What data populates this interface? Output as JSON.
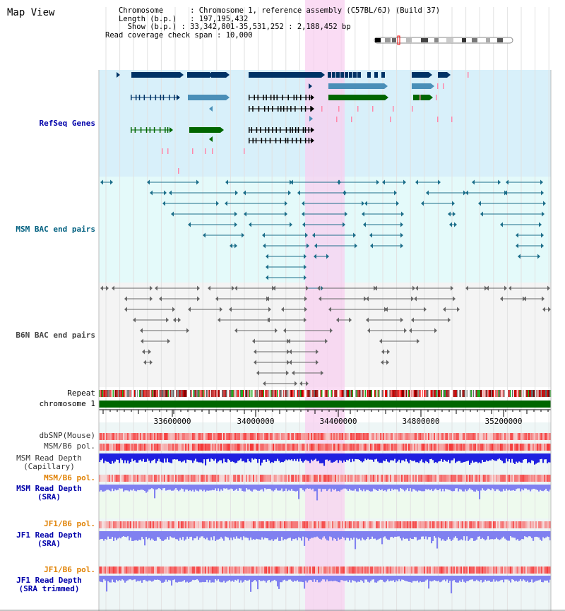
{
  "header": {
    "title": "Map View"
  },
  "info": {
    "chromosome_key": "Chromosome",
    "chromosome_val": "Chromosome 1, reference assembly (C57BL/6J) (Build 37)",
    "length_key": "Length (b.p.)",
    "length_val": "197,195,432",
    "show_key": "Show (b.p.)",
    "show_val": "33,342,801-35,531,252 : 2,188,452 bp",
    "span_key": "Read coverage check span",
    "span_val": "10,000"
  },
  "tracks": {
    "refseq": "RefSeq Genes",
    "msm_bac": "MSM BAC end pairs",
    "b6n_bac": "B6N BAC end pairs",
    "repeat": "Repeat",
    "chromosome": "chromosome 1",
    "dbsnp": "dbSNP(Mouse)",
    "msm_b6_pol": "MSM/B6 pol.",
    "msm_depth_cap_1": "MSM Read Depth",
    "msm_depth_cap_2": "(Capillary)",
    "msm_b6_pol_2": "MSM/B6 pol.",
    "msm_depth_sra_1": "MSM Read Depth",
    "msm_depth_sra_2": "(SRA)",
    "jf1_b6_pol": "JF1/B6 pol.",
    "jf1_depth_sra_1": "JF1 Read Depth",
    "jf1_depth_sra_2": "(SRA)",
    "jf1_b6_pol_2": "JF1/B6 pol.",
    "jf1_depth_trim_1": "JF1 Read Depth",
    "jf1_depth_trim_2": "(SRA trimmed)"
  },
  "ruler": {
    "ticks": [
      "33600000",
      "34000000",
      "34400000",
      "34800000",
      "35200000"
    ]
  },
  "colors": {
    "refseq_bg": "#d8f0fa",
    "msm_bg": "#e4fafa",
    "b6n_bg": "#f4f4f4",
    "highlight": "#f8d0f0",
    "chromosome": "#006600",
    "gene_dark": "#003366",
    "gene_light": "#4a8fb8",
    "gene_green": "#006600",
    "bac_teal": "#1c6e8a",
    "bac_gray": "#666666",
    "depth_blue": "#2020e0",
    "depth_light": "#8080f0"
  }
}
